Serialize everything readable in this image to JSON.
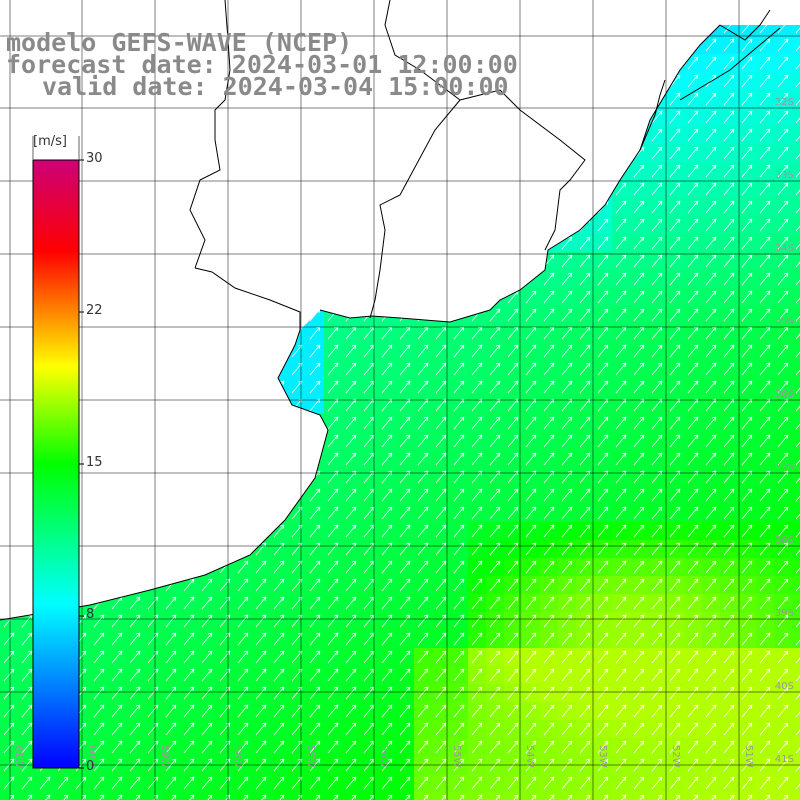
{
  "header": {
    "model": "modelo GEFS-WAVE (NCEP)",
    "forecast": "forecast date: 2024-03-01 12:00:00",
    "valid": "valid date: 2024-03-04 15:00:00"
  },
  "colorbar": {
    "units": "[m/s]",
    "min": 0,
    "max": 30,
    "ticks": [
      "30",
      "22",
      "15",
      "8",
      "0"
    ],
    "tick_values": [
      30,
      22,
      15,
      8,
      0
    ],
    "gradient": [
      "#0000ff",
      "#00ffff",
      "#00ff00",
      "#ffff00",
      "#ff0000",
      "#cc0077"
    ]
  },
  "axes": {
    "lat_labels": [
      "32S",
      "33S",
      "34S",
      "35S",
      "36S",
      "37S",
      "38S",
      "39S",
      "40S",
      "41S"
    ],
    "lon_labels": [
      "61W",
      "60W",
      "59W",
      "58W",
      "57W",
      "56W",
      "55W",
      "54W",
      "53W",
      "52W",
      "51W"
    ]
  },
  "colors": {
    "land": "#ffffff",
    "grid": "#000000",
    "coast": "#000000",
    "label_gray": "#8a8a8a",
    "arrow": "#ffffff"
  },
  "chart_data": {
    "type": "heatmap",
    "variable": "wind speed",
    "units": "m/s",
    "scale": [
      0,
      30
    ],
    "lat_range": [
      "32S",
      "41S"
    ],
    "lon_range": [
      "61W",
      "51W"
    ],
    "description_values": {
      "nearshore_min": 7,
      "open_ocean_typical": 12,
      "southeast_max": 17
    },
    "vector_direction": "from SW toward NE"
  }
}
